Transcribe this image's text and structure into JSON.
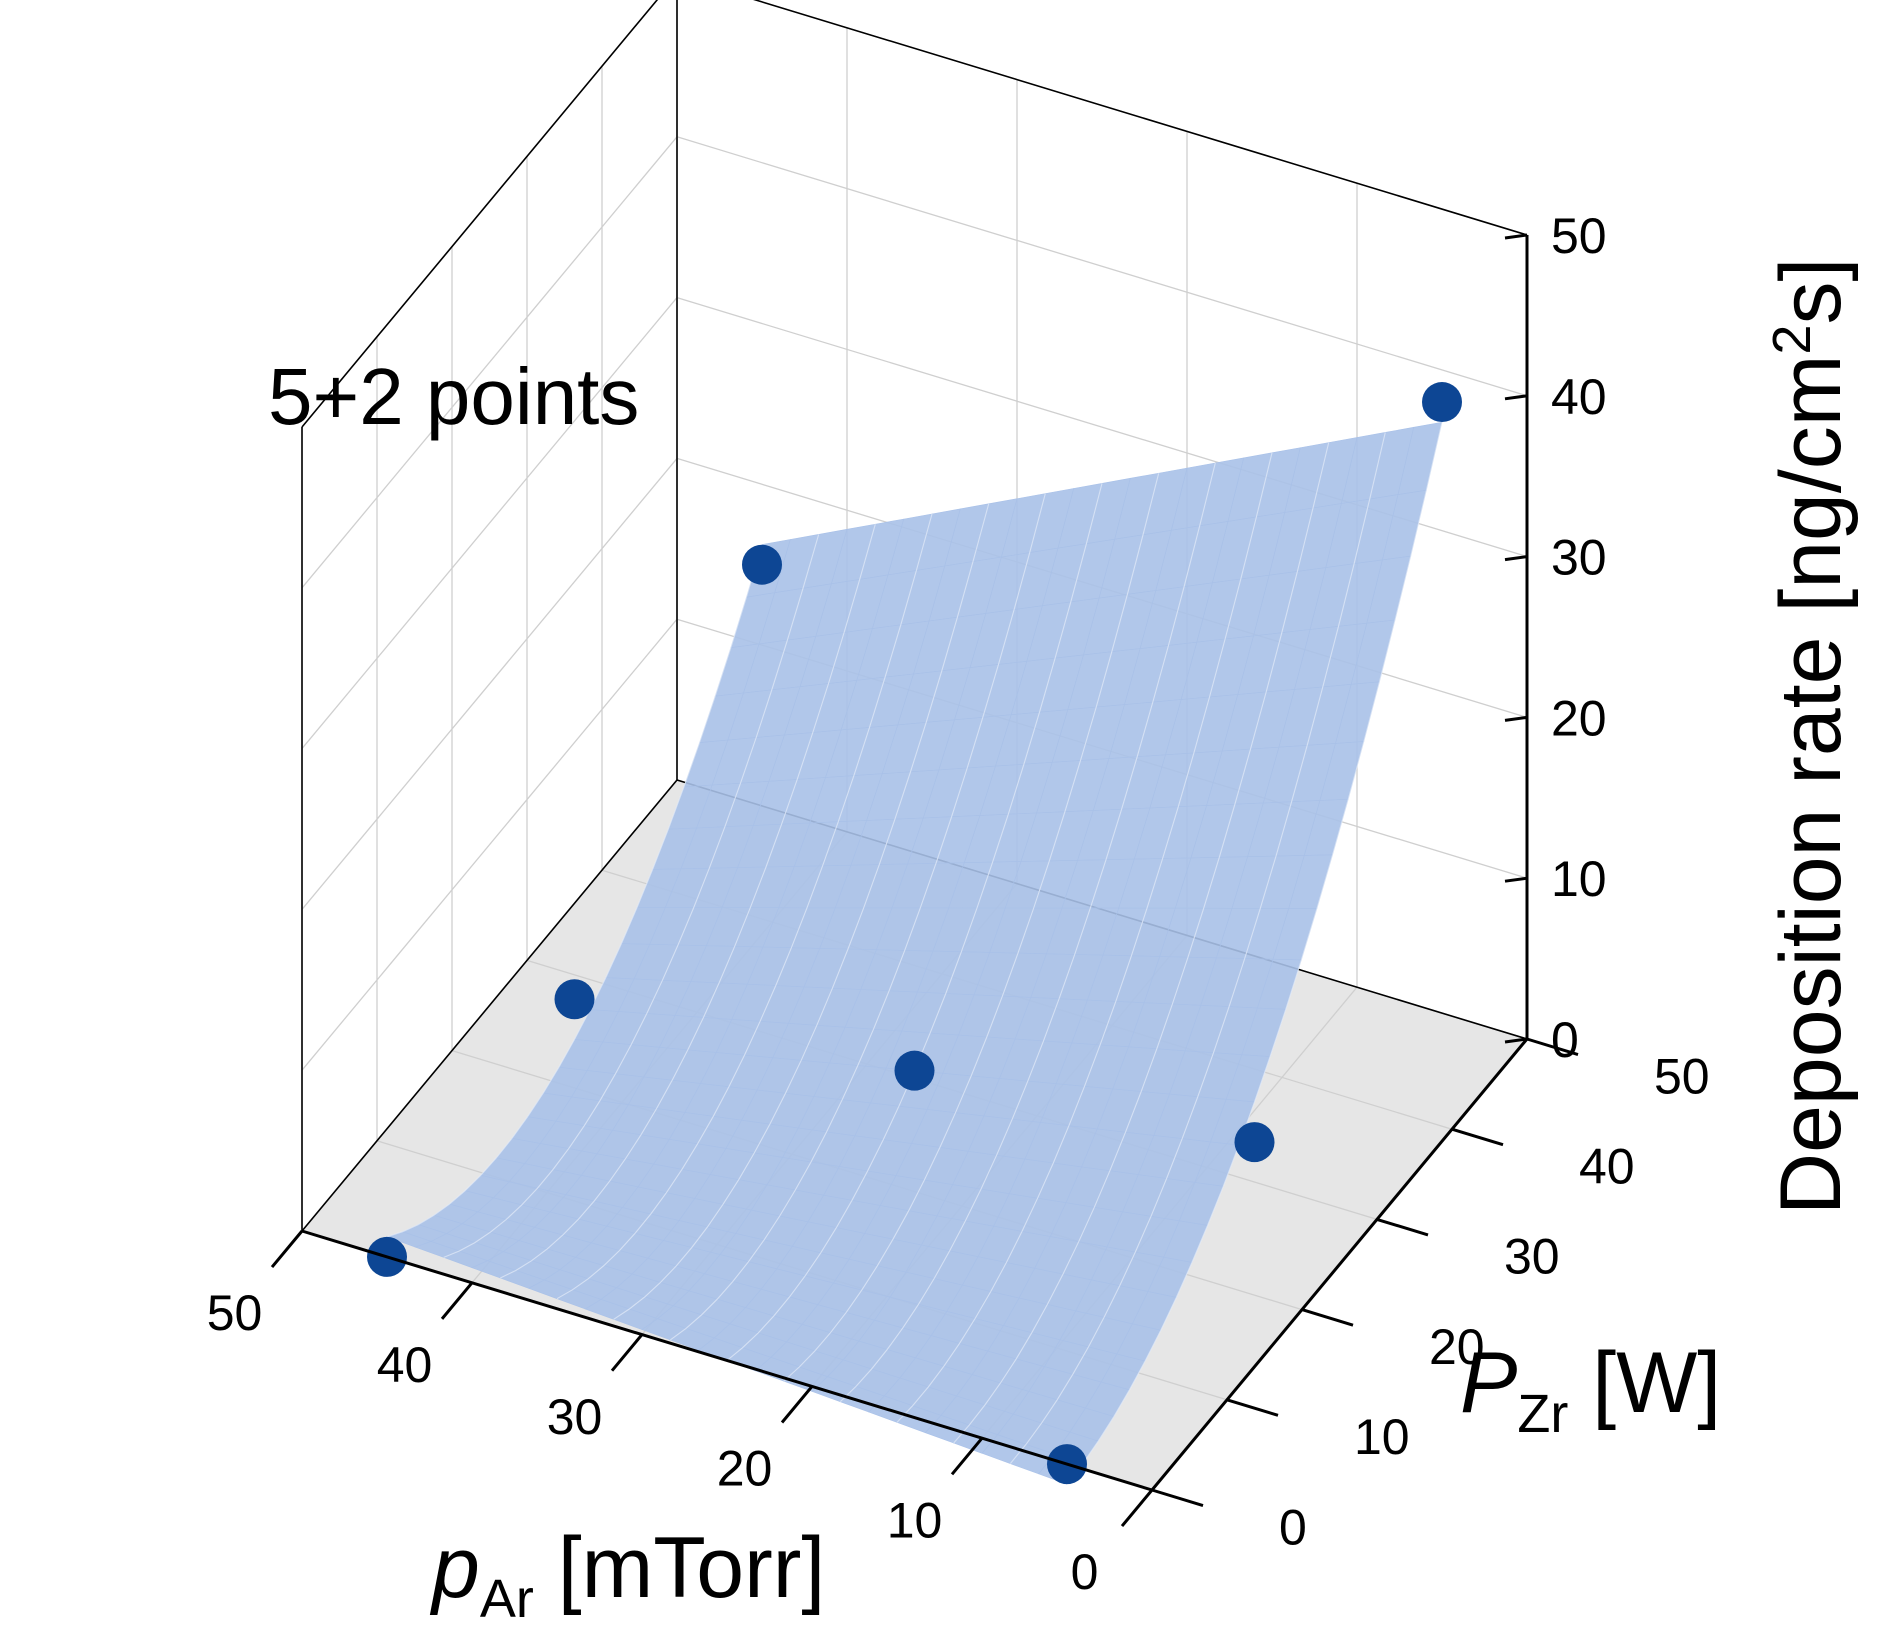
{
  "chart_data": {
    "type": "surface3d",
    "annotation": "5+2 points",
    "xlabel": {
      "main": "p",
      "sub": "Ar",
      "unit": " [mTorr]"
    },
    "ylabel": {
      "main": "P",
      "sub": "Zr",
      "unit": " [W]"
    },
    "zlabel": {
      "pre": "Deposition rate [ng/cm",
      "sup": "2",
      "post": "s]"
    },
    "x_ticks": [
      "0",
      "10",
      "20",
      "30",
      "40",
      "50"
    ],
    "y_ticks": [
      "0",
      "10",
      "20",
      "30",
      "40",
      "50"
    ],
    "z_ticks": [
      "0",
      "10",
      "20",
      "30",
      "40",
      "50"
    ],
    "xlim": [
      0,
      50
    ],
    "ylim": [
      0,
      50
    ],
    "zlim": [
      0,
      50
    ],
    "grid": true,
    "colors": {
      "surface": "#a9c1e8",
      "points": "#0d4694",
      "floor": "#e6e6e6"
    },
    "points": [
      {
        "p_Ar": 5,
        "P_Zr": 0,
        "rate": 0
      },
      {
        "p_Ar": 45,
        "P_Zr": 0,
        "rate": 0
      },
      {
        "p_Ar": 25,
        "P_Zr": 25,
        "rate": 4
      },
      {
        "p_Ar": 45,
        "P_Zr": 25,
        "rate": 2
      },
      {
        "p_Ar": 45,
        "P_Zr": 50,
        "rate": 15
      },
      {
        "p_Ar": 5,
        "P_Zr": 25,
        "rate": 6
      },
      {
        "p_Ar": 5,
        "P_Zr": 50,
        "rate": 38
      }
    ]
  }
}
